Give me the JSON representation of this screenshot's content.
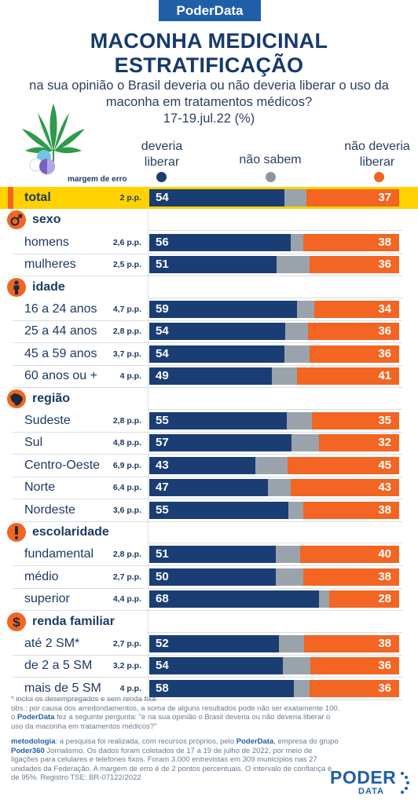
{
  "brand": "PoderData",
  "title_line1": "MACONHA MEDICINAL",
  "title_line2": "ESTRATIFICAÇÃO",
  "subtitle_line1": "na sua opinião o Brasil deveria ou não deveria liberar o uso da",
  "subtitle_line2": "maconha em tratamentos médicos?",
  "subtitle_line3": "17-19.jul.22 (%)",
  "legend": {
    "yes_line1": "deveria",
    "yes_line2": "liberar",
    "dk": "não sabem",
    "no_line1": "não deveria",
    "no_line2": "liberar",
    "moe_header": "margem de erro"
  },
  "colors": {
    "yes": "#1a3e73",
    "dk": "#9aa3ab",
    "no": "#f26522",
    "highlight": "#ffd200",
    "brand": "#1f5fa8"
  },
  "chart_data": {
    "type": "bar",
    "stacked": true,
    "orientation": "horizontal",
    "series_names": [
      "deveria liberar",
      "não sabem",
      "não deveria liberar"
    ],
    "xlim": [
      0,
      100
    ],
    "rows": [
      {
        "kind": "total",
        "label": "total",
        "moe": "2 p.p.",
        "yes": 54,
        "dk": 9,
        "no": 37
      },
      {
        "kind": "group",
        "label": "sexo",
        "icon": "gender-icon"
      },
      {
        "kind": "row",
        "label": "homens",
        "moe": "2,6 p.p.",
        "yes": 56,
        "dk": 5,
        "no": 38
      },
      {
        "kind": "row",
        "label": "mulheres",
        "moe": "2,5 p.p.",
        "yes": 51,
        "dk": 13,
        "no": 36
      },
      {
        "kind": "group",
        "label": "idade",
        "icon": "person-icon"
      },
      {
        "kind": "row",
        "label": "16 a 24 anos",
        "moe": "4,7 p.p.",
        "yes": 59,
        "dk": 7,
        "no": 34
      },
      {
        "kind": "row",
        "label": "25 a 44 anos",
        "moe": "2,8 p.p.",
        "yes": 54,
        "dk": 9,
        "no": 36
      },
      {
        "kind": "row",
        "label": "45 a 59 anos",
        "moe": "3,7 p.p.",
        "yes": 54,
        "dk": 10,
        "no": 36
      },
      {
        "kind": "row",
        "label": "60 anos ou +",
        "moe": "4 p.p.",
        "yes": 49,
        "dk": 10,
        "no": 41
      },
      {
        "kind": "group",
        "label": "região",
        "icon": "brazil-map-icon"
      },
      {
        "kind": "row",
        "label": "Sudeste",
        "moe": "2,8 p.p.",
        "yes": 55,
        "dk": 10,
        "no": 35
      },
      {
        "kind": "row",
        "label": "Sul",
        "moe": "4,8 p.p.",
        "yes": 57,
        "dk": 11,
        "no": 32
      },
      {
        "kind": "row",
        "label": "Centro-Oeste",
        "moe": "6,9 p.p.",
        "yes": 43,
        "dk": 13,
        "no": 45
      },
      {
        "kind": "row",
        "label": "Norte",
        "moe": "6,4 p.p.",
        "yes": 47,
        "dk": 9,
        "no": 43
      },
      {
        "kind": "row",
        "label": "Nordeste",
        "moe": "3,6 p.p.",
        "yes": 55,
        "dk": 6,
        "no": 38
      },
      {
        "kind": "group",
        "label": "escolaridade",
        "icon": "exclamation-icon"
      },
      {
        "kind": "row",
        "label": "fundamental",
        "moe": "2,8 p.p.",
        "yes": 51,
        "dk": 10,
        "no": 40
      },
      {
        "kind": "row",
        "label": "médio",
        "moe": "2,7 p.p.",
        "yes": 50,
        "dk": 11,
        "no": 38
      },
      {
        "kind": "row",
        "label": "superior",
        "moe": "4,4 p.p.",
        "yes": 68,
        "dk": 4,
        "no": 28
      },
      {
        "kind": "group",
        "label": "renda familiar",
        "icon": "dollar-icon"
      },
      {
        "kind": "row",
        "label": "até 2 SM*",
        "moe": "2,7 p.p.",
        "yes": 52,
        "dk": 10,
        "no": 38
      },
      {
        "kind": "row",
        "label": "de 2 a 5 SM",
        "moe": "3,2 p.p.",
        "yes": 54,
        "dk": 11,
        "no": 36
      },
      {
        "kind": "row",
        "label": "mais de 5 SM",
        "moe": "4 p.p.",
        "yes": 58,
        "dk": 6,
        "no": 36
      }
    ]
  },
  "footer": {
    "note1": "* inclui os desempregados e sem renda fixa",
    "note2": "obs.: por causa dos arredondamentos, a soma de alguns resultados pode não ser exatamente 100.",
    "note3_pre": "o ",
    "note3_brand": "PoderData",
    "note3_post": " fez a seguinte pergunta: \"e na sua opinião o Brasil deveria ou não deveria liberar o uso da maconha em tratamentos médicos?\"",
    "method_label": "metodologia",
    "method_text_a": ": a pesquisa foi realizada, com recursos próprios, pelo ",
    "method_brand": "PoderData",
    "method_text_b": ", empresa do grupo ",
    "method_brand2": "Poder360",
    "method_text_c": " Jornalismo. Os dados foram coletados de 17 a 19 de julho de 2022, por meio de ligações para celulares e telefones fixos. Foram 3.000 entrevistas em 309 municípios nas 27 unidades da Federação. A margem de erro é de 2 pontos percentuais. O intervalo de confiança é de 95%. Registro TSE: BR-07122/2022"
  },
  "logo": {
    "main": "PODER",
    "sub": "DATA"
  }
}
